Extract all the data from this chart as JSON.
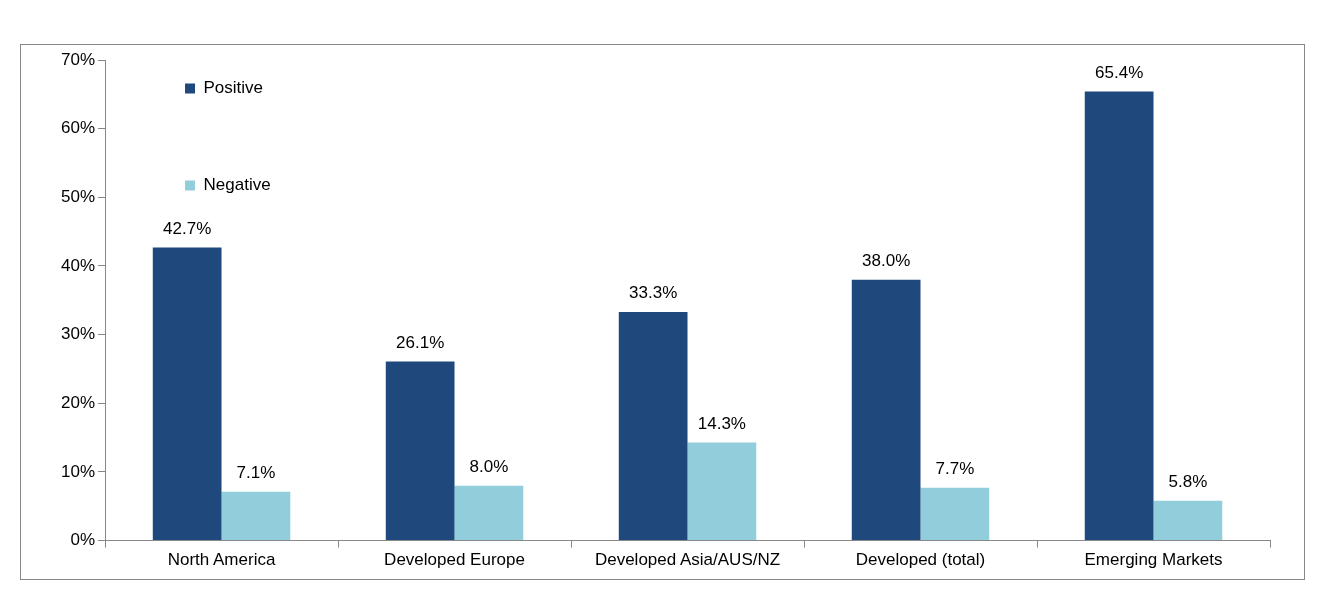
{
  "chart_data": {
    "type": "bar",
    "categories": [
      "North America",
      "Developed Europe",
      "Developed Asia/AUS/NZ",
      "Developed (total)",
      "Emerging Markets"
    ],
    "series": [
      {
        "name": "Positive",
        "color": "#1f497d",
        "values": [
          42.7,
          26.1,
          33.3,
          38.0,
          65.4
        ],
        "value_labels": [
          "42.7%",
          "26.1%",
          "33.3%",
          "38.0%",
          "65.4%"
        ]
      },
      {
        "name": "Negative",
        "color": "#92cddc",
        "values": [
          7.1,
          8.0,
          14.3,
          7.7,
          5.8
        ],
        "value_labels": [
          "7.1%",
          "8.0%",
          "14.3%",
          "7.7%",
          "5.8%"
        ]
      }
    ],
    "ylim": [
      0,
      70
    ],
    "yticks": [
      {
        "value": 0,
        "label": "0%"
      },
      {
        "value": 10,
        "label": "10%"
      },
      {
        "value": 20,
        "label": "20%"
      },
      {
        "value": 30,
        "label": "30%"
      },
      {
        "value": 40,
        "label": "40%"
      },
      {
        "value": 50,
        "label": "50%"
      },
      {
        "value": 60,
        "label": "60%"
      },
      {
        "value": 70,
        "label": "70%"
      }
    ],
    "grid": false,
    "legend": "top left"
  }
}
